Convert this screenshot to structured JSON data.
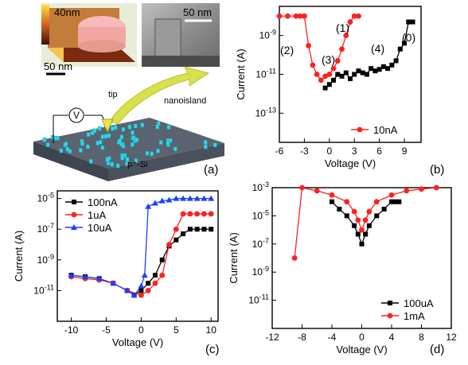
{
  "colors": {
    "black": "#000000",
    "red": "#ff2020",
    "blue": "#1a40ff"
  },
  "panel_a": {
    "label": "(a)",
    "afm_scale_top": "40nm",
    "afm_scale_bar": "50 nm",
    "tem_scale_bar": "50 nm",
    "tip_label": "tip",
    "nanoisland_label": "nanoisland",
    "voltmeter_label": "V",
    "substrate_label": "p⁺-Si"
  },
  "chart_data": [
    {
      "panel": "(b)",
      "type": "scatter",
      "xlabel": "Voltage (V)",
      "ylabel": "Current (A)",
      "xlim": [
        -6,
        11
      ],
      "ylim_log10": [
        -14.5,
        -7.5
      ],
      "y_scale": "log",
      "xticks": [
        -6,
        -3,
        0,
        3,
        6,
        9
      ],
      "yticks": [
        "10-9",
        "10-11",
        "10-13"
      ],
      "legend_position": "bottom-right",
      "annotations": [
        "(0)",
        "(1)",
        "(2)",
        "(3)",
        "(4)"
      ],
      "series": [
        {
          "name": "",
          "color": "#000000",
          "marker": "square",
          "x": [
            -0.5,
            0,
            0.5,
            1,
            1.5,
            2,
            2.5,
            3,
            3.5,
            4,
            4.5,
            5,
            5.5,
            6,
            6.5,
            7,
            7.5,
            8,
            8.5,
            9,
            9.5,
            10
          ],
          "y": [
            2e-12,
            3e-12,
            5e-12,
            1e-11,
            8e-12,
            1.2e-11,
            6e-12,
            1e-11,
            1.5e-11,
            1.2e-11,
            1e-11,
            2e-11,
            1.5e-11,
            1.8e-11,
            2.5e-11,
            2e-11,
            3e-11,
            5e-11,
            2e-10,
            4e-10,
            5e-09,
            5e-09
          ]
        },
        {
          "name": "10nA",
          "color": "#ff2020",
          "marker": "circle",
          "x": [
            -6,
            -5,
            -4,
            -3.5,
            -3,
            -2.5,
            -2,
            -1.5,
            -1,
            -0.5,
            0,
            0.5,
            1,
            1.5,
            2,
            2.5,
            3,
            3.5
          ],
          "y": [
            1e-08,
            1e-08,
            1e-08,
            1e-08,
            1e-08,
            3e-10,
            3e-11,
            1e-11,
            5e-12,
            8e-12,
            1e-11,
            2e-11,
            5e-11,
            2e-10,
            1e-09,
            5e-09,
            1e-08,
            1e-08
          ]
        }
      ]
    },
    {
      "panel": "(c)",
      "type": "scatter",
      "xlabel": "Voltage (V)",
      "ylabel": "Current (A)",
      "xlim": [
        -12,
        11
      ],
      "ylim_log10": [
        -13,
        -4.5
      ],
      "y_scale": "log",
      "xticks": [
        -10,
        -5,
        0,
        5,
        10
      ],
      "yticks": [
        "10-5",
        "10-7",
        "10-9",
        "10-11"
      ],
      "legend_position": "top-left",
      "series": [
        {
          "name": "100nA",
          "color": "#000000",
          "marker": "square",
          "x": [
            -10,
            -8,
            -6,
            -4,
            -2,
            -1,
            0,
            1,
            2,
            3,
            4,
            5,
            6,
            7,
            8,
            9,
            10
          ],
          "y": [
            1e-10,
            8e-11,
            6e-11,
            3e-11,
            1e-11,
            5e-12,
            1e-11,
            3e-11,
            1e-10,
            1e-09,
            8e-09,
            2e-08,
            5e-08,
            1e-07,
            1e-07,
            1e-07,
            1e-07
          ]
        },
        {
          "name": "1uA",
          "color": "#ff2020",
          "marker": "circle",
          "x": [
            -10,
            -8,
            -6,
            -4,
            -2,
            0,
            1,
            2,
            3,
            4,
            5,
            6,
            7,
            8,
            9,
            10
          ],
          "y": [
            8e-11,
            6e-11,
            5e-11,
            3e-11,
            1e-11,
            5e-12,
            1e-11,
            3e-11,
            1e-10,
            1e-08,
            1e-07,
            1e-06,
            1e-06,
            1e-06,
            1e-06,
            1e-06
          ]
        },
        {
          "name": "10uA",
          "color": "#1a40ff",
          "marker": "triangle",
          "x": [
            -10,
            -8,
            -6,
            -4,
            -2,
            -1,
            0,
            0.5,
            1,
            2,
            3,
            4,
            5,
            6,
            7,
            8,
            9,
            10
          ],
          "y": [
            1e-10,
            8e-11,
            6e-11,
            3e-11,
            1e-11,
            5e-12,
            2e-11,
            1e-10,
            3e-06,
            5e-06,
            7e-06,
            8e-06,
            1e-05,
            1e-05,
            1e-05,
            1e-05,
            1e-05,
            1e-05
          ]
        }
      ]
    },
    {
      "panel": "(d)",
      "type": "scatter",
      "xlabel": "Voltage (V)",
      "ylabel": "Current (A)",
      "xlim": [
        -12,
        12
      ],
      "ylim_log10": [
        -13,
        -3
      ],
      "y_scale": "log",
      "xticks": [
        -12,
        -8,
        -4,
        0,
        4,
        8,
        12
      ],
      "yticks": [
        "10-3",
        "10-5",
        "10-7",
        "10-9",
        "10-11"
      ],
      "legend_position": "bottom-right",
      "series": [
        {
          "name": "100uA",
          "color": "#000000",
          "marker": "square",
          "x": [
            -4,
            -3,
            -2,
            -1,
            -0.5,
            0,
            0.5,
            1,
            2,
            3,
            4,
            4.5,
            5
          ],
          "y": [
            0.0001,
            3e-05,
            1e-05,
            2e-06,
            5e-07,
            1e-07,
            5e-07,
            2e-06,
            1e-05,
            3e-05,
            0.0001,
            0.0001,
            0.0001
          ]
        },
        {
          "name": "1mA",
          "color": "#ff2020",
          "marker": "circle",
          "x": [
            -9,
            -8,
            -6,
            -4,
            -2,
            -1,
            -0.5,
            0,
            0.5,
            1,
            2,
            4,
            6,
            8,
            10
          ],
          "y": [
            1e-08,
            0.001,
            0.0006,
            0.0003,
            0.0001,
            2e-05,
            5e-06,
            1e-06,
            5e-06,
            2e-05,
            0.0001,
            0.0003,
            0.0006,
            0.0008,
            0.001
          ]
        }
      ]
    }
  ]
}
